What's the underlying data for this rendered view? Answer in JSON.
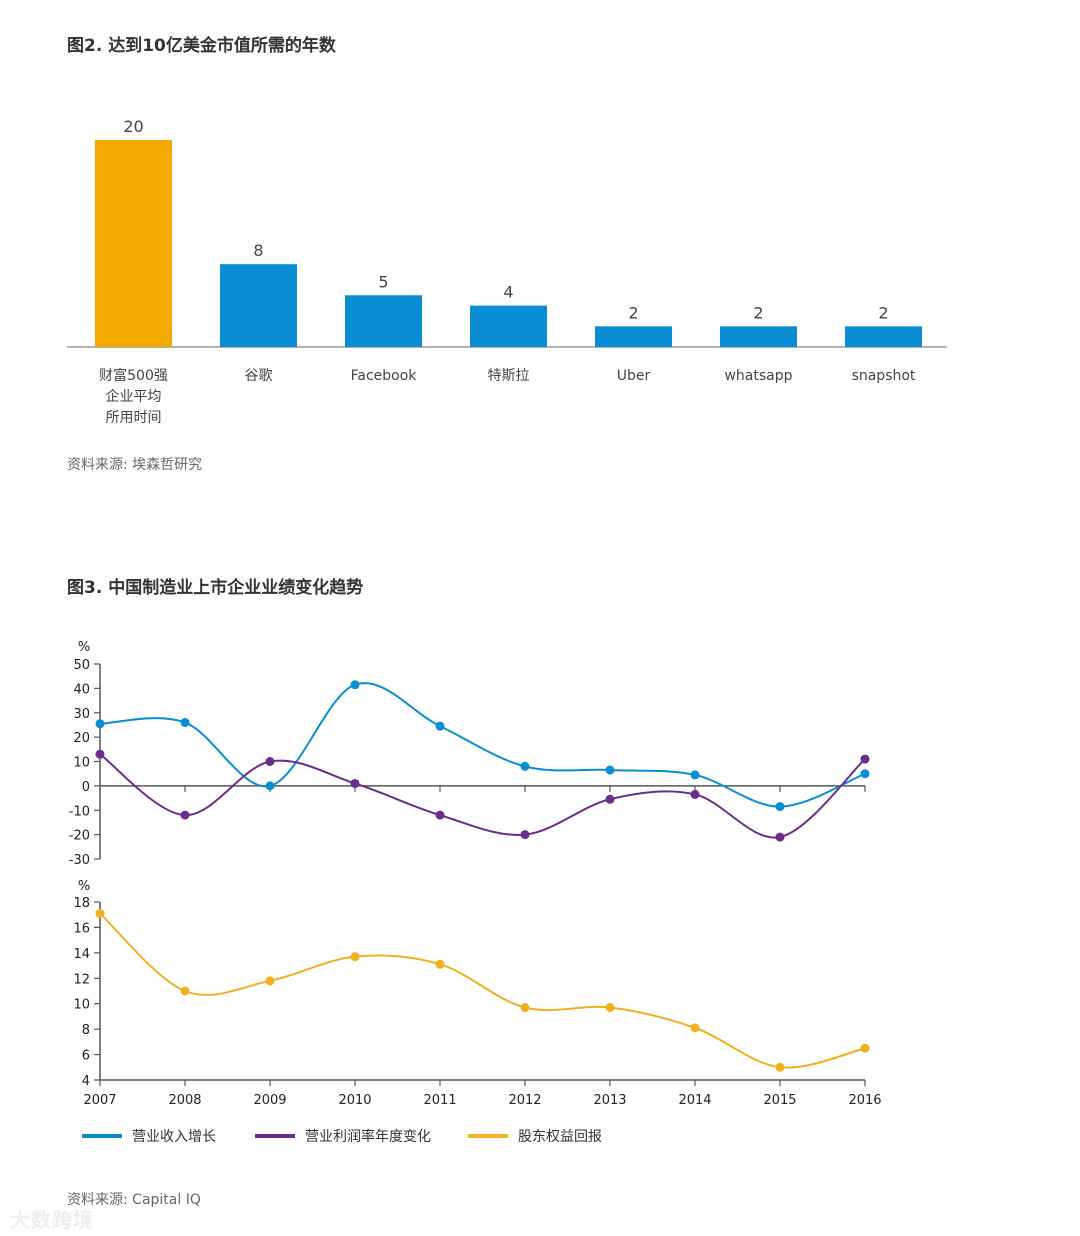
{
  "fig2": {
    "title": "图2. 达到10亿美金市值所需的年数",
    "source": "资料来源: 埃森哲研究"
  },
  "fig3": {
    "title": "图3. 中国制造业上市企业业绩变化趋势",
    "source": "资料来源: Capital IQ",
    "top_unit": "%",
    "bottom_unit": "%"
  },
  "watermark": "大数跨境",
  "colors": {
    "orange": "#f2a900",
    "blue": "#0a8ed3",
    "purple": "#6b2d8a",
    "yellow": "#f0b020",
    "axis": "#555555"
  },
  "chart_data": [
    {
      "type": "bar",
      "categories": [
        [
          "财富500强",
          "企业平均",
          "所用时间"
        ],
        [
          "谷歌"
        ],
        [
          "Facebook"
        ],
        [
          "特斯拉"
        ],
        [
          "Uber"
        ],
        [
          "whatsapp"
        ],
        [
          "snapshot"
        ]
      ],
      "values": [
        20,
        8,
        5,
        4,
        2,
        2,
        2
      ],
      "bar_colors": [
        "#f2a900",
        "#0a8ed3",
        "#0a8ed3",
        "#0a8ed3",
        "#0a8ed3",
        "#0a8ed3",
        "#0a8ed3"
      ],
      "title": "图2. 达到10亿美金市值所需的年数"
    },
    {
      "type": "line",
      "title": "图3. 中国制造业上市企业业绩变化趋势",
      "x": [
        2007,
        2008,
        2009,
        2010,
        2011,
        2012,
        2013,
        2014,
        2015,
        2016
      ],
      "ylabel": "%",
      "ylim": [
        -30,
        50
      ],
      "yticks": [
        -30,
        -20,
        -10,
        0,
        10,
        20,
        30,
        40,
        50
      ],
      "series": [
        {
          "name": "营业收入增长",
          "color": "#0a8ed3",
          "values": [
            25.5,
            26,
            0,
            41.5,
            24.5,
            8,
            6.5,
            4.5,
            -8.5,
            5
          ]
        },
        {
          "name": "营业利润率年度变化",
          "color": "#6b2d8a",
          "values": [
            13,
            -12,
            10,
            1,
            -12,
            -20,
            -5.5,
            -3.5,
            -21,
            11
          ]
        }
      ]
    },
    {
      "type": "line",
      "x": [
        2007,
        2008,
        2009,
        2010,
        2011,
        2012,
        2013,
        2014,
        2015,
        2016
      ],
      "ylabel": "%",
      "ylim": [
        4,
        18
      ],
      "yticks": [
        4,
        6,
        8,
        10,
        12,
        14,
        16,
        18
      ],
      "series": [
        {
          "name": "股东权益回报",
          "color": "#f0b020",
          "values": [
            17.1,
            11,
            11.8,
            13.7,
            13.1,
            9.7,
            9.7,
            8.1,
            5,
            6.5
          ]
        }
      ]
    }
  ]
}
